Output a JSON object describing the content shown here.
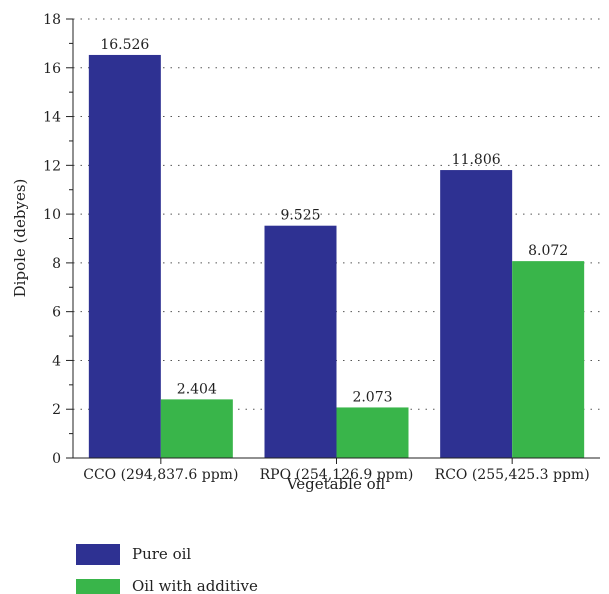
{
  "chart_data": {
    "type": "bar",
    "categories": [
      "CCO (294,837.6 ppm)",
      "RPO (254,126.9 ppm)",
      "RCO (255,425.3 ppm)"
    ],
    "series": [
      {
        "name": "Pure oil",
        "values": [
          16.526,
          9.525,
          11.806
        ],
        "labels": [
          "16.526",
          "9.525",
          "11.806"
        ],
        "color": "#2e3192"
      },
      {
        "name": "Oil with additive",
        "values": [
          2.404,
          2.073,
          8.072
        ],
        "labels": [
          "2.404",
          "2.073",
          "8.072"
        ],
        "color": "#39b54a"
      }
    ],
    "xlabel": "Vegetable oil",
    "ylabel": "Dipole (debyes)",
    "ylim": [
      0,
      18
    ],
    "yticks": [
      "0",
      "2",
      "4",
      "6",
      "8",
      "10",
      "12",
      "14",
      "16",
      "18"
    ],
    "grid": "dotted-horizontal",
    "legend_position": "bottom-left"
  }
}
